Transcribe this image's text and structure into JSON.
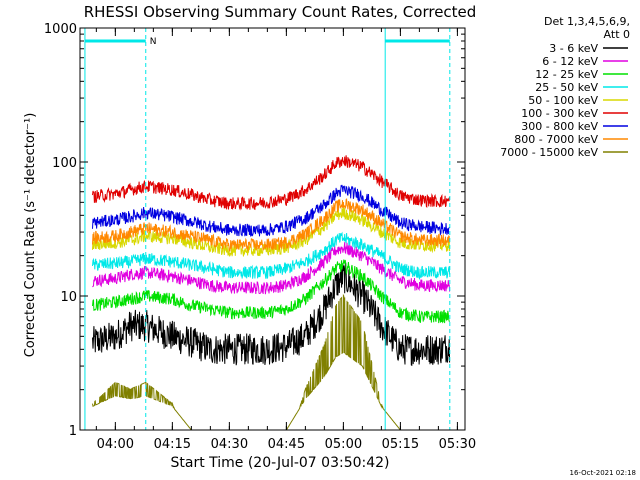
{
  "chart_data": {
    "type": "line",
    "title": "RHESSI Observing Summary Count Rates, Corrected",
    "xlabel": "Start Time (20-Jul-07 03:50:42)",
    "ylabel": "Corrected Count Rate (s⁻¹ detector⁻¹)",
    "yscale": "log",
    "ylim": [
      1,
      1000
    ],
    "xlim": [
      "03:50:42",
      "05:32"
    ],
    "x_ticks": [
      "04:00",
      "04:15",
      "04:30",
      "04:45",
      "05:00",
      "05:15",
      "05:30"
    ],
    "y_ticks": [
      "1",
      "10",
      "100",
      "1000"
    ],
    "legend_header": [
      "Det 1,3,4,5,6,9,",
      "Att 0"
    ],
    "legend_position": "top-right",
    "flag_label": "N",
    "timestamp": "16-Oct-2021 02:18",
    "x_times": [
      "03:54",
      "04:00",
      "04:04",
      "04:08",
      "04:15",
      "04:20",
      "04:25",
      "04:30",
      "04:35",
      "04:40",
      "04:45",
      "04:50",
      "04:55",
      "04:58",
      "05:00",
      "05:05",
      "05:10",
      "05:15",
      "05:20",
      "05:25",
      "05:28"
    ],
    "series": [
      {
        "name": "3 - 6 keV",
        "color": "#000000",
        "values": [
          4.5,
          5,
          6,
          6,
          5,
          4.5,
          4,
          4,
          4,
          4,
          4.2,
          5,
          8,
          12,
          14,
          10,
          6,
          4,
          4,
          4,
          4.2
        ]
      },
      {
        "name": "6 - 12 keV",
        "color": "#e000e0",
        "values": [
          13,
          13.5,
          14.5,
          15,
          14,
          13,
          12,
          11.5,
          11.5,
          11.5,
          12,
          14,
          18,
          22,
          23,
          20,
          16,
          13,
          12,
          12,
          12
        ]
      },
      {
        "name": "12 - 25 keV",
        "color": "#00e000",
        "values": [
          8.5,
          9,
          9.5,
          10,
          9.5,
          8.5,
          8,
          7.5,
          7.5,
          7.5,
          8,
          9.5,
          13,
          16,
          17,
          14,
          10,
          7.5,
          7,
          7,
          7
        ]
      },
      {
        "name": "25 - 50 keV",
        "color": "#00e8e8",
        "values": [
          17,
          17.5,
          18,
          19,
          18,
          17,
          16,
          15,
          15,
          15,
          16,
          18,
          22,
          26,
          27,
          24,
          20,
          16,
          15,
          15,
          15
        ]
      },
      {
        "name": "50 - 100 keV",
        "color": "#d8d800",
        "values": [
          24,
          25,
          26,
          28,
          27,
          25,
          23,
          22,
          22,
          22,
          23,
          26,
          33,
          40,
          42,
          37,
          30,
          25,
          24,
          24,
          24
        ]
      },
      {
        "name": "100 - 300 keV",
        "color": "#e00000",
        "values": [
          55,
          58,
          62,
          66,
          62,
          57,
          52,
          49,
          49,
          50,
          53,
          62,
          80,
          98,
          103,
          92,
          72,
          56,
          52,
          51,
          51
        ]
      },
      {
        "name": "300 - 800 keV",
        "color": "#0000e0",
        "values": [
          35,
          37,
          39,
          42,
          39,
          36,
          33,
          31,
          31,
          31,
          33,
          38,
          48,
          58,
          62,
          56,
          44,
          35,
          33,
          32,
          32
        ]
      },
      {
        "name": "800 - 7000 keV",
        "color": "#ff8800",
        "values": [
          27,
          28,
          30,
          32,
          30,
          28,
          26,
          24,
          24,
          24,
          25,
          29,
          38,
          46,
          49,
          44,
          35,
          28,
          26,
          26,
          26
        ]
      },
      {
        "name": "7000 - 15000 keV",
        "color": "#808000",
        "values": [
          1.5,
          1.8,
          1.7,
          1.8,
          1.5,
          1,
          1,
          1,
          1,
          1,
          1,
          1.7,
          2.5,
          3.5,
          3.8,
          3,
          1.5,
          1,
          1,
          1,
          1
        ]
      }
    ],
    "markers": [
      {
        "time": "03:52",
        "color": "#00e8e8",
        "style": "solid"
      },
      {
        "time": "04:08",
        "color": "#00e8e8",
        "style": "dashed"
      },
      {
        "time": "05:11",
        "color": "#00e8e8",
        "style": "solid"
      },
      {
        "time": "05:28",
        "color": "#00e8e8",
        "style": "dashed"
      }
    ],
    "flag_bars": [
      {
        "start": "03:52",
        "end": "04:08",
        "value": 800,
        "color": "#00e8e8"
      },
      {
        "start": "05:11",
        "end": "05:28",
        "value": 800,
        "color": "#00e8e8"
      }
    ]
  }
}
